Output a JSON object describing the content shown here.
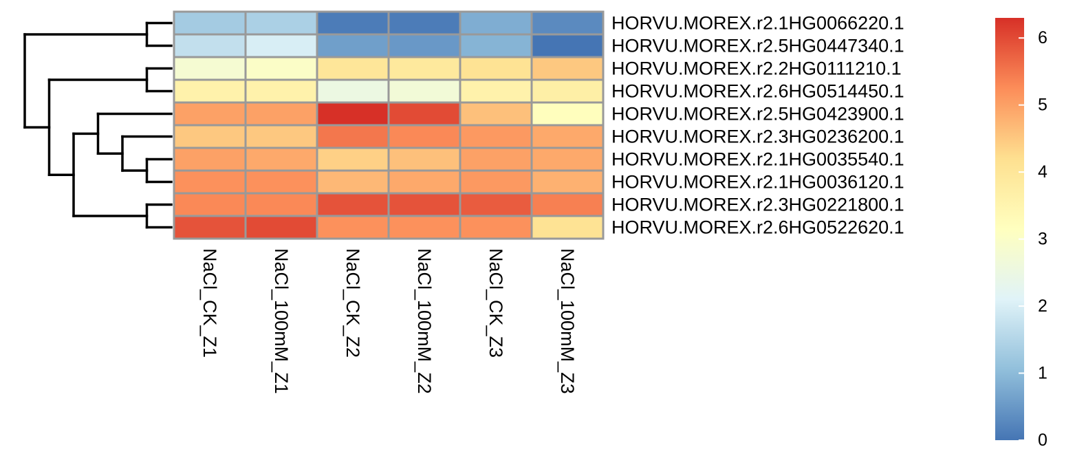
{
  "chart_data": {
    "type": "heatmap",
    "columns": [
      "NaCl_CK_Z1",
      "NaCl_100mM_Z1",
      "NaCl_CK_Z2",
      "NaCl_100mM_Z2",
      "NaCl_CK_Z3",
      "NaCl_100mM_Z3"
    ],
    "rows": [
      "HORVU.MOREX.r2.1HG0066220.1",
      "HORVU.MOREX.r2.5HG0447340.1",
      "HORVU.MOREX.r2.2HG0111210.1",
      "HORVU.MOREX.r2.6HG0514450.1",
      "HORVU.MOREX.r2.5HG0423900.1",
      "HORVU.MOREX.r2.3HG0236200.1",
      "HORVU.MOREX.r2.1HG0035540.1",
      "HORVU.MOREX.r2.1HG0036120.1",
      "HORVU.MOREX.r2.3HG0221800.1",
      "HORVU.MOREX.r2.6HG0522620.1"
    ],
    "values": [
      [
        1.3,
        1.4,
        0.1,
        0.1,
        0.8,
        0.3
      ],
      [
        1.7,
        2.0,
        0.6,
        0.5,
        0.9,
        0.0
      ],
      [
        2.8,
        3.0,
        4.0,
        3.9,
        4.1,
        4.5
      ],
      [
        3.6,
        3.6,
        2.5,
        2.7,
        3.6,
        3.7
      ],
      [
        5.0,
        5.0,
        6.3,
        6.0,
        4.6,
        3.2
      ],
      [
        4.5,
        4.5,
        5.5,
        5.3,
        5.1,
        4.9
      ],
      [
        5.0,
        4.9,
        4.4,
        4.6,
        5.0,
        4.9
      ],
      [
        5.2,
        5.2,
        4.7,
        4.9,
        5.1,
        4.8
      ],
      [
        5.3,
        5.3,
        5.9,
        5.9,
        5.8,
        5.4
      ],
      [
        5.9,
        6.0,
        5.2,
        5.2,
        5.2,
        4.1
      ]
    ],
    "color_scale": {
      "min": 0,
      "max": 6.3,
      "ticks": [
        0,
        1,
        2,
        3,
        4,
        5,
        6
      ],
      "colors": [
        "#4575b4",
        "#91bfdb",
        "#e0f3f8",
        "#ffffbf",
        "#fee090",
        "#fc8d59",
        "#d73027"
      ]
    },
    "grid_color": "#999999",
    "dendrogram": {
      "tree": [
        [
          [
            0,
            1
          ],
          [
            [
              2,
              3
            ],
            [
              [
                4,
                [
                  5,
                  [
                    6,
                    7
                  ]
                ]
              ],
              [
                8,
                9
              ]
            ]
          ]
        ]
      ]
    }
  }
}
